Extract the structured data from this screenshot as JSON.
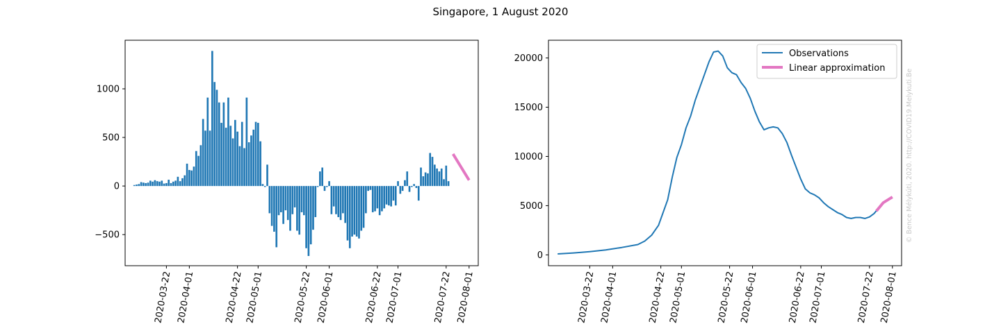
{
  "title": "Singapore, 1 August 2020",
  "watermark": "© Bence Mélykúti, 2020. http://COVID19.Melykuti.Be",
  "colors": {
    "observations": "#1f77b4",
    "approximation": "#e377c2",
    "axis": "#000000"
  },
  "chart_data": [
    {
      "type": "bar",
      "xlabel": "",
      "ylabel": "",
      "xlim": [
        "2020-03-04",
        "2020-08-05"
      ],
      "ylim": [
        -820,
        1500
      ],
      "x_ticks": [
        "2020-03-22",
        "2020-04-01",
        "2020-04-22",
        "2020-05-01",
        "2020-05-22",
        "2020-06-01",
        "2020-06-22",
        "2020-07-01",
        "2020-07-22",
        "2020-08-01"
      ],
      "y_ticks": [
        -500,
        0,
        500,
        1000
      ],
      "grid": false,
      "x_start": "2020-03-08",
      "values": [
        10,
        15,
        20,
        40,
        35,
        30,
        35,
        55,
        45,
        60,
        50,
        45,
        55,
        25,
        30,
        65,
        30,
        45,
        55,
        95,
        50,
        80,
        110,
        230,
        165,
        160,
        200,
        360,
        310,
        420,
        690,
        570,
        910,
        570,
        1390,
        1070,
        990,
        860,
        650,
        860,
        600,
        910,
        620,
        490,
        680,
        560,
        410,
        660,
        390,
        910,
        450,
        520,
        580,
        660,
        650,
        460,
        20,
        -10,
        220,
        -280,
        -410,
        -470,
        -630,
        -300,
        -270,
        -390,
        -250,
        -350,
        -460,
        -290,
        -220,
        -460,
        -500,
        -270,
        -300,
        -640,
        -720,
        -600,
        -450,
        -320,
        -10,
        150,
        190,
        -50,
        -10,
        50,
        -290,
        -210,
        -290,
        -320,
        -350,
        -280,
        -380,
        -560,
        -640,
        -520,
        -500,
        -520,
        -540,
        -460,
        -430,
        -280,
        -50,
        -40,
        -270,
        -260,
        -230,
        -300,
        -260,
        -230,
        -190,
        -200,
        -210,
        -150,
        -200,
        50,
        -80,
        -50,
        60,
        150,
        -60,
        -10,
        20,
        -20,
        -150,
        190,
        100,
        140,
        130,
        340,
        300,
        220,
        180,
        150,
        180,
        70,
        210,
        50
      ],
      "approximation": {
        "x": [
          "2020-07-25",
          "2020-08-01"
        ],
        "y": [
          330,
          60
        ]
      }
    },
    {
      "type": "line",
      "xlabel": "",
      "ylabel": "",
      "xlim": [
        "2020-03-04",
        "2020-08-05"
      ],
      "ylim": [
        -1100,
        21800
      ],
      "x_ticks": [
        "2020-03-22",
        "2020-04-01",
        "2020-04-22",
        "2020-05-01",
        "2020-05-22",
        "2020-06-01",
        "2020-06-22",
        "2020-07-01",
        "2020-07-22",
        "2020-08-01"
      ],
      "y_ticks": [
        0,
        5000,
        10000,
        15000,
        20000
      ],
      "grid": false,
      "legend_position": "top-right",
      "series": [
        {
          "name": "Observations",
          "points": [
            [
              "2020-03-08",
              100
            ],
            [
              "2020-03-15",
              200
            ],
            [
              "2020-03-22",
              330
            ],
            [
              "2020-03-29",
              500
            ],
            [
              "2020-04-05",
              750
            ],
            [
              "2020-04-12",
              1050
            ],
            [
              "2020-04-15",
              1400
            ],
            [
              "2020-04-18",
              2000
            ],
            [
              "2020-04-21",
              3000
            ],
            [
              "2020-04-23",
              4300
            ],
            [
              "2020-04-25",
              5600
            ],
            [
              "2020-04-27",
              7900
            ],
            [
              "2020-04-29",
              9900
            ],
            [
              "2020-05-01",
              11200
            ],
            [
              "2020-05-03",
              12900
            ],
            [
              "2020-05-05",
              14100
            ],
            [
              "2020-05-07",
              15700
            ],
            [
              "2020-05-09",
              17000
            ],
            [
              "2020-05-11",
              18300
            ],
            [
              "2020-05-13",
              19600
            ],
            [
              "2020-05-15",
              20600
            ],
            [
              "2020-05-17",
              20700
            ],
            [
              "2020-05-19",
              20200
            ],
            [
              "2020-05-21",
              19000
            ],
            [
              "2020-05-23",
              18500
            ],
            [
              "2020-05-25",
              18300
            ],
            [
              "2020-05-27",
              17500
            ],
            [
              "2020-05-29",
              16900
            ],
            [
              "2020-05-31",
              15900
            ],
            [
              "2020-06-02",
              14600
            ],
            [
              "2020-06-04",
              13500
            ],
            [
              "2020-06-06",
              12700
            ],
            [
              "2020-06-08",
              12900
            ],
            [
              "2020-06-10",
              13000
            ],
            [
              "2020-06-12",
              12900
            ],
            [
              "2020-06-14",
              12300
            ],
            [
              "2020-06-16",
              11400
            ],
            [
              "2020-06-18",
              10100
            ],
            [
              "2020-06-20",
              8900
            ],
            [
              "2020-06-22",
              7700
            ],
            [
              "2020-06-24",
              6700
            ],
            [
              "2020-06-26",
              6300
            ],
            [
              "2020-06-28",
              6100
            ],
            [
              "2020-06-30",
              5800
            ],
            [
              "2020-07-02",
              5300
            ],
            [
              "2020-07-04",
              4900
            ],
            [
              "2020-07-06",
              4600
            ],
            [
              "2020-07-08",
              4300
            ],
            [
              "2020-07-10",
              4100
            ],
            [
              "2020-07-12",
              3800
            ],
            [
              "2020-07-14",
              3700
            ],
            [
              "2020-07-16",
              3800
            ],
            [
              "2020-07-18",
              3800
            ],
            [
              "2020-07-20",
              3700
            ],
            [
              "2020-07-22",
              3850
            ],
            [
              "2020-07-24",
              4200
            ],
            [
              "2020-07-26",
              4750
            ],
            [
              "2020-07-28",
              5250
            ],
            [
              "2020-07-30",
              5550
            ],
            [
              "2020-08-01",
              5800
            ]
          ]
        },
        {
          "name": "Linear approximation",
          "points": [
            [
              "2020-07-25",
              4450
            ],
            [
              "2020-07-28",
              5300
            ],
            [
              "2020-08-01",
              5880
            ]
          ]
        }
      ]
    }
  ]
}
